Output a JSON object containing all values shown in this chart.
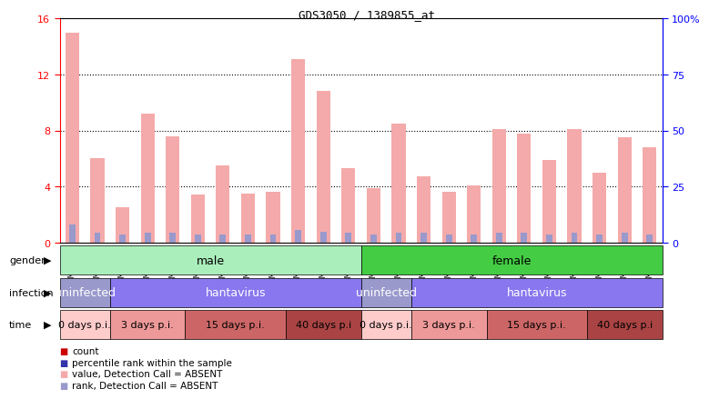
{
  "title": "GDS3050 / 1389855_at",
  "samples": [
    "GSM175452",
    "GSM175453",
    "GSM175454",
    "GSM175455",
    "GSM175456",
    "GSM175457",
    "GSM175458",
    "GSM175459",
    "GSM175460",
    "GSM175461",
    "GSM175462",
    "GSM175463",
    "GSM175440",
    "GSM175441",
    "GSM175442",
    "GSM175443",
    "GSM175444",
    "GSM175445",
    "GSM175446",
    "GSM175447",
    "GSM175448",
    "GSM175449",
    "GSM175450",
    "GSM175451"
  ],
  "values": [
    15.0,
    6.0,
    2.5,
    9.2,
    7.6,
    3.4,
    5.5,
    3.5,
    3.6,
    13.1,
    10.8,
    5.3,
    3.9,
    8.5,
    4.7,
    3.6,
    4.1,
    8.1,
    7.8,
    5.9,
    8.1,
    5.0,
    7.5,
    6.8
  ],
  "rank_values": [
    1.3,
    0.7,
    0.6,
    0.7,
    0.7,
    0.6,
    0.6,
    0.6,
    0.6,
    0.9,
    0.8,
    0.7,
    0.6,
    0.7,
    0.7,
    0.6,
    0.6,
    0.7,
    0.7,
    0.6,
    0.7,
    0.6,
    0.7,
    0.6
  ],
  "ylim_left": [
    0,
    16
  ],
  "ylim_right": [
    0,
    100
  ],
  "yticks_left": [
    0,
    4,
    8,
    12,
    16
  ],
  "yticks_right": [
    0,
    25,
    50,
    75,
    100
  ],
  "bar_color_pink": "#F4AAAA",
  "bar_color_blue": "#9999CC",
  "gender_row": [
    {
      "label": "male",
      "start": 0,
      "end": 12,
      "color": "#AAEEBB"
    },
    {
      "label": "female",
      "start": 12,
      "end": 24,
      "color": "#44CC44"
    }
  ],
  "infection_row": [
    {
      "label": "uninfected",
      "start": 0,
      "end": 2,
      "color": "#9999CC"
    },
    {
      "label": "hantavirus",
      "start": 2,
      "end": 12,
      "color": "#8877EE"
    },
    {
      "label": "uninfected",
      "start": 12,
      "end": 14,
      "color": "#9999CC"
    },
    {
      "label": "hantavirus",
      "start": 14,
      "end": 24,
      "color": "#8877EE"
    }
  ],
  "time_row": [
    {
      "label": "0 days p.i.",
      "start": 0,
      "end": 2,
      "color": "#FFCCCC"
    },
    {
      "label": "3 days p.i.",
      "start": 2,
      "end": 5,
      "color": "#EE9999"
    },
    {
      "label": "15 days p.i.",
      "start": 5,
      "end": 9,
      "color": "#CC6666"
    },
    {
      "label": "40 days p.i",
      "start": 9,
      "end": 12,
      "color": "#AA4444"
    },
    {
      "label": "0 days p.i.",
      "start": 12,
      "end": 14,
      "color": "#FFCCCC"
    },
    {
      "label": "3 days p.i.",
      "start": 14,
      "end": 17,
      "color": "#EE9999"
    },
    {
      "label": "15 days p.i.",
      "start": 17,
      "end": 21,
      "color": "#CC6666"
    },
    {
      "label": "40 days p.i",
      "start": 21,
      "end": 24,
      "color": "#AA4444"
    }
  ],
  "legend_items": [
    {
      "label": "count",
      "color": "#CC0000"
    },
    {
      "label": "percentile rank within the sample",
      "color": "#3333AA"
    },
    {
      "label": "value, Detection Call = ABSENT",
      "color": "#F4AAAA"
    },
    {
      "label": "rank, Detection Call = ABSENT",
      "color": "#9999CC"
    }
  ],
  "bg_color": "#FFFFFF",
  "chart_bg": "#FFFFFF",
  "xticklabel_bg": "#DDDDDD"
}
